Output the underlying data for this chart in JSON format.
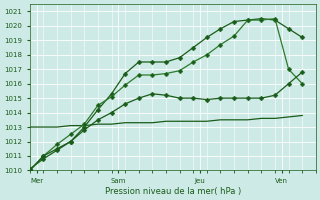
{
  "xlabel": "Pression niveau de la mer( hPa )",
  "bg_color": "#ceeae6",
  "grid_color": "#ffffff",
  "line_color_dark": "#1a5c1a",
  "line_color_mid": "#2d7a2d",
  "ylim": [
    1010,
    1021.5
  ],
  "yticks": [
    1010,
    1011,
    1012,
    1013,
    1014,
    1015,
    1016,
    1017,
    1018,
    1019,
    1020,
    1021
  ],
  "day_labels": [
    "Mer",
    "Sam",
    "Jeu",
    "Ven"
  ],
  "day_positions": [
    0.5,
    6.5,
    12.5,
    18.5
  ],
  "xlim": [
    0,
    21
  ],
  "num_points": 21,
  "line1_x": [
    0,
    1,
    2,
    3,
    4,
    5,
    6,
    7,
    8,
    9,
    10,
    11,
    12,
    13,
    14,
    15,
    16,
    17,
    18,
    19,
    20
  ],
  "line1_y": [
    1010.1,
    1010.8,
    1011.4,
    1012.0,
    1013.0,
    1014.2,
    1015.3,
    1016.7,
    1017.5,
    1017.5,
    1017.5,
    1017.8,
    1018.5,
    1019.2,
    1019.8,
    1020.3,
    1020.4,
    1020.5,
    1020.4,
    1019.8,
    1019.2
  ],
  "line2_x": [
    0,
    1,
    2,
    3,
    4,
    5,
    6,
    7,
    8,
    9,
    10,
    11,
    12,
    13,
    14,
    15,
    16,
    17,
    18,
    19,
    20
  ],
  "line2_y": [
    1010.0,
    1011.0,
    1011.8,
    1012.5,
    1013.2,
    1014.5,
    1015.1,
    1015.9,
    1016.6,
    1016.6,
    1016.7,
    1016.9,
    1017.5,
    1018.0,
    1018.7,
    1019.3,
    1020.4,
    1020.4,
    1020.5,
    1017.0,
    1016.0
  ],
  "line3_x": [
    0,
    1,
    2,
    3,
    4,
    5,
    6,
    7,
    8,
    9,
    10,
    11,
    12,
    13,
    14,
    15,
    16,
    17,
    18,
    19,
    20
  ],
  "line3_y": [
    1010.0,
    1011.0,
    1011.5,
    1012.0,
    1012.8,
    1013.5,
    1014.0,
    1014.6,
    1015.0,
    1015.3,
    1015.2,
    1015.0,
    1015.0,
    1014.9,
    1015.0,
    1015.0,
    1015.0,
    1015.0,
    1015.2,
    1016.0,
    1016.8
  ],
  "line4_x": [
    0,
    1,
    2,
    3,
    4,
    5,
    6,
    7,
    8,
    9,
    10,
    11,
    12,
    13,
    14,
    15,
    16,
    17,
    18,
    19,
    20
  ],
  "line4_y": [
    1013.0,
    1013.0,
    1013.0,
    1013.1,
    1013.1,
    1013.2,
    1013.2,
    1013.3,
    1013.3,
    1013.3,
    1013.4,
    1013.4,
    1013.4,
    1013.4,
    1013.5,
    1013.5,
    1013.5,
    1013.6,
    1013.6,
    1013.7,
    1013.8
  ]
}
